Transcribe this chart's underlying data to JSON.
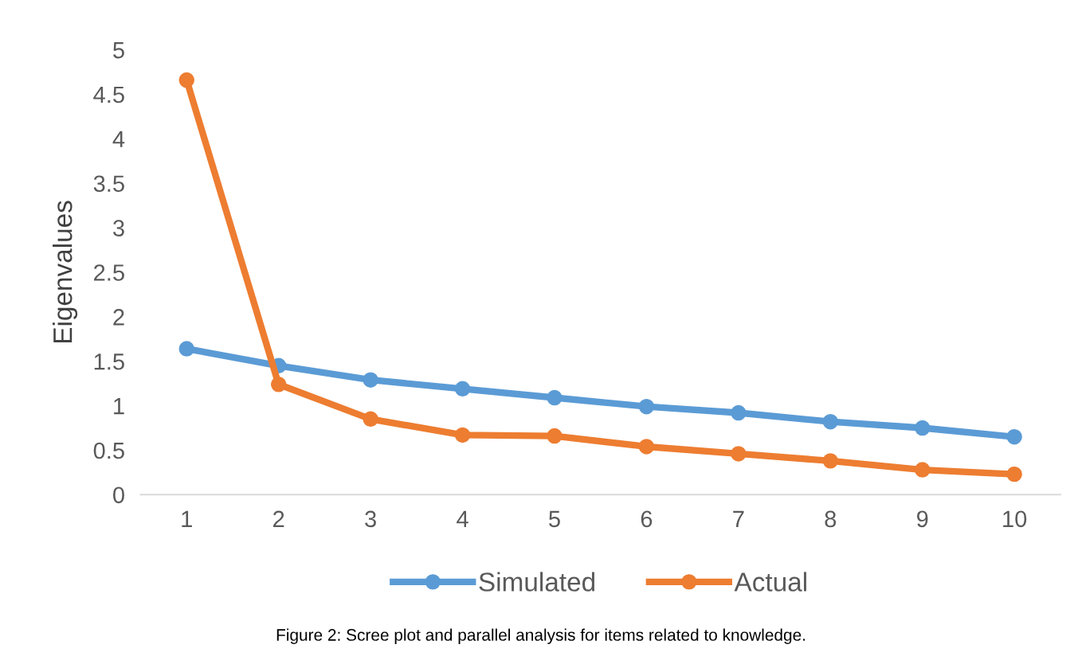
{
  "chart_data": {
    "type": "line",
    "ylabel": "Eigenvalues",
    "categories": [
      "1",
      "2",
      "3",
      "4",
      "5",
      "6",
      "7",
      "8",
      "9",
      "10"
    ],
    "series": [
      {
        "name": "Simulated",
        "color": "#5b9bd5",
        "values": [
          1.64,
          1.45,
          1.29,
          1.19,
          1.09,
          0.99,
          0.92,
          0.82,
          0.75,
          0.65
        ]
      },
      {
        "name": "Actual",
        "color": "#ed7d31",
        "values": [
          4.66,
          1.24,
          0.85,
          0.67,
          0.66,
          0.54,
          0.46,
          0.38,
          0.28,
          0.23
        ]
      }
    ],
    "ylim": [
      0,
      5
    ],
    "yticks": [
      0,
      0.5,
      1,
      1.5,
      2,
      2.5,
      3,
      3.5,
      4,
      4.5,
      5
    ],
    "grid": false,
    "legend": "bottom",
    "marker": "circle",
    "line_style": "solid",
    "annotations": [
      "Figure 2: Scree plot and parallel analysis for items related to knowledge."
    ]
  }
}
